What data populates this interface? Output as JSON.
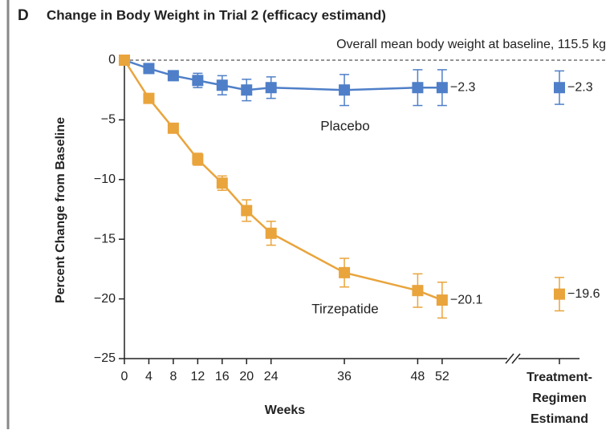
{
  "chart_data": {
    "type": "line",
    "panel": "D",
    "title": "Change in Body Weight in Trial 2 (efficacy estimand)",
    "annotation": "Overall mean body weight at baseline, 115.5 kg",
    "xlabel": "Weeks",
    "ylabel": "Percent Change from Baseline",
    "x": [
      0,
      4,
      8,
      12,
      16,
      20,
      24,
      36,
      48,
      52
    ],
    "xlim": [
      0,
      62
    ],
    "xticks": [
      0,
      4,
      8,
      12,
      16,
      20,
      24,
      36,
      48,
      52
    ],
    "ylim": [
      -25,
      0
    ],
    "yticks": [
      {
        "value": 0,
        "label": "0"
      },
      {
        "value": -5,
        "label": "−5"
      },
      {
        "value": -10,
        "label": "−10"
      },
      {
        "value": -15,
        "label": "−15"
      },
      {
        "value": -20,
        "label": "−20"
      },
      {
        "value": -25,
        "label": "−25"
      }
    ],
    "estimand_label": "Treatment-Regimen Estimand",
    "series": [
      {
        "name": "Placebo",
        "color": "#4f7fc8",
        "values": [
          0,
          -0.7,
          -1.3,
          -1.7,
          -2.1,
          -2.5,
          -2.3,
          -2.5,
          -2.3,
          -2.3
        ],
        "errors": [
          0,
          0.3,
          0.4,
          0.6,
          0.8,
          0.9,
          0.9,
          1.3,
          1.5,
          1.5
        ],
        "value_labels": [
          null,
          null,
          null,
          null,
          null,
          null,
          null,
          null,
          null,
          "−2.3"
        ],
        "estimand": {
          "value": -2.3,
          "error": 1.4,
          "value_label": "−2.3"
        }
      },
      {
        "name": "Tirzepatide",
        "color": "#e9a43c",
        "values": [
          0,
          -3.2,
          -5.7,
          -8.3,
          -10.3,
          -12.6,
          -14.5,
          -17.8,
          -19.3,
          -20.1
        ],
        "errors": [
          0,
          0.3,
          0.4,
          0.5,
          0.6,
          0.9,
          1.0,
          1.2,
          1.4,
          1.5
        ],
        "value_labels": [
          null,
          null,
          null,
          null,
          null,
          null,
          null,
          null,
          null,
          "−20.1"
        ],
        "estimand": {
          "value": -19.6,
          "error": 1.4,
          "value_label": "−19.6"
        }
      }
    ]
  }
}
